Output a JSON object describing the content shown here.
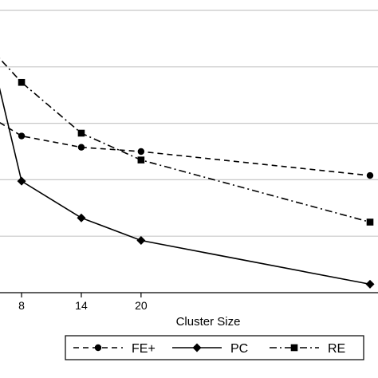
{
  "chart_data": {
    "type": "line",
    "title": "",
    "xlabel": "Cluster Size",
    "ylabel": "",
    "xlim": [
      5,
      43
    ],
    "ylim": [
      0,
      1
    ],
    "x_ticks": [
      8,
      14,
      20
    ],
    "grid": true,
    "legend_position": "bottom",
    "series": [
      {
        "name": "FE+",
        "marker": "circle",
        "dash": "dashed",
        "color": "#000000",
        "x": [
          5,
          8,
          14,
          20,
          43
        ],
        "y": [
          0.62,
          0.555,
          0.515,
          0.5,
          0.415
        ]
      },
      {
        "name": "PC",
        "marker": "diamond",
        "dash": "solid",
        "color": "#000000",
        "x": [
          5,
          8,
          14,
          20,
          43
        ],
        "y": [
          0.84,
          0.395,
          0.265,
          0.185,
          0.03
        ]
      },
      {
        "name": "RE",
        "marker": "square",
        "dash": "dashdot",
        "color": "#000000",
        "x": [
          5,
          8,
          14,
          20,
          43
        ],
        "y": [
          0.86,
          0.745,
          0.565,
          0.47,
          0.25
        ]
      }
    ]
  }
}
